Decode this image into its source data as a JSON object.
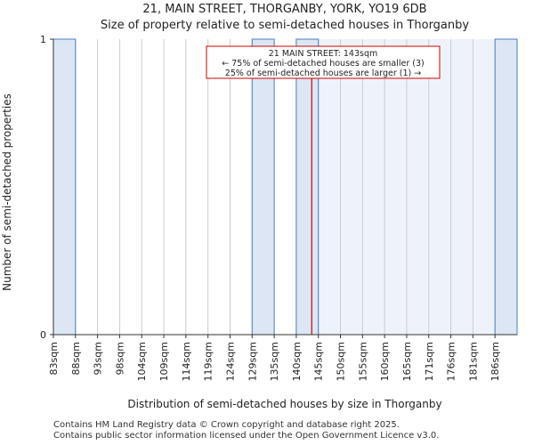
{
  "chart_data": {
    "type": "bar",
    "title": "21, MAIN STREET, THORGANBY, YORK, YO19 6DB",
    "subtitle": "Size of property relative to semi-detached houses in Thorganby",
    "xlabel": "Distribution of semi-detached houses by size in Thorganby",
    "ylabel": "Number of semi-detached properties",
    "categories": [
      "83sqm",
      "88sqm",
      "93sqm",
      "98sqm",
      "104sqm",
      "109sqm",
      "114sqm",
      "119sqm",
      "124sqm",
      "129sqm",
      "135sqm",
      "140sqm",
      "145sqm",
      "150sqm",
      "155sqm",
      "160sqm",
      "165sqm",
      "171sqm",
      "176sqm",
      "181sqm",
      "186sqm"
    ],
    "values": [
      1,
      0,
      0,
      0,
      0,
      0,
      0,
      0,
      0,
      1,
      0,
      1,
      0,
      0,
      0,
      0,
      0,
      0,
      0,
      0,
      1
    ],
    "ylim": [
      0,
      1
    ],
    "yticks": [
      "0",
      "1"
    ],
    "property_size_sqm": 143,
    "property_bin_position": 11.7,
    "annotation": {
      "line1": "21 MAIN STREET: 143sqm",
      "line2": "← 75% of semi-detached houses are smaller (3)",
      "line3": "25% of semi-detached houses are larger (1) →"
    },
    "colors": {
      "bar_fill": "#dce6f4",
      "bar_edge": "#4a7ebb",
      "larger_fill": "#eef3fb",
      "marker_line": "#cc0000",
      "grid": "#cccccc"
    }
  },
  "footer": {
    "line1": "Contains HM Land Registry data © Crown copyright and database right 2025.",
    "line2": "Contains public sector information licensed under the Open Government Licence v3.0."
  }
}
